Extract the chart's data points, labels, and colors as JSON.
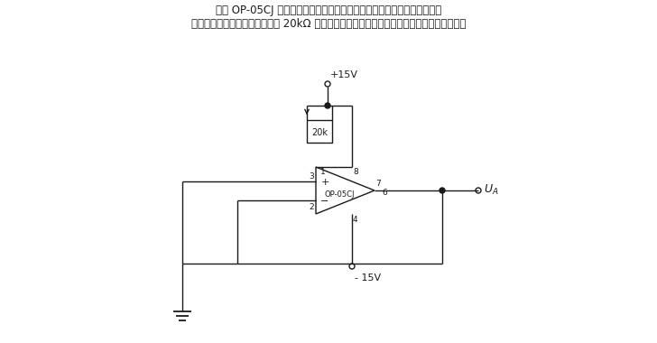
{
  "title_line1": "采用 OP-05CJ 高性能单运算放大器构成的简单毫伏信号源电路。这里采用",
  "title_line2": "射极跟随器接线方式，通过改变 20kΩ 电位器滑动触点位置可以调节输出电压的零点和大小。",
  "bg_color": "#ffffff",
  "line_color": "#1a1a1a",
  "text_color": "#1a1a1a",
  "fig_width": 7.28,
  "fig_height": 3.8,
  "dpi": 100
}
